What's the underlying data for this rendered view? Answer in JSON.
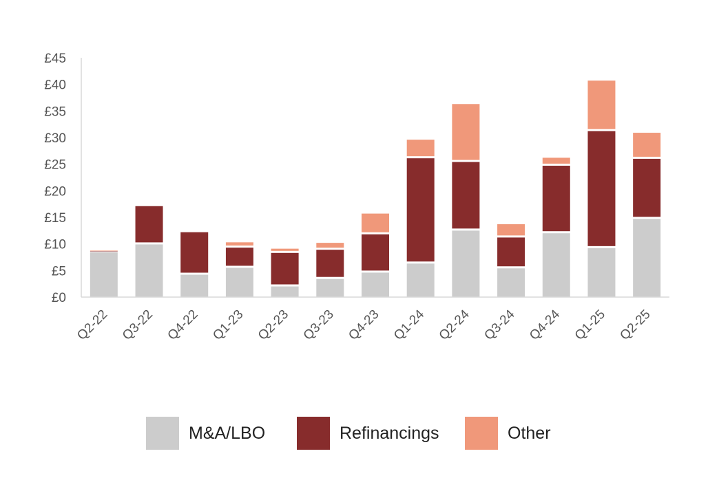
{
  "chart_data": {
    "type": "bar",
    "stacked": true,
    "categories": [
      "Q2-22",
      "Q3-22",
      "Q4-22",
      "Q1-23",
      "Q2-23",
      "Q3-23",
      "Q4-23",
      "Q1-24",
      "Q2-24",
      "Q3-24",
      "Q4-24",
      "Q1-25",
      "Q2-25"
    ],
    "series": [
      {
        "name": "M&A/LBO",
        "color": "#cccccc",
        "values": [
          8.4,
          9.9,
          4.2,
          5.5,
          2.0,
          3.4,
          4.6,
          6.3,
          12.5,
          5.4,
          12.0,
          9.2,
          14.7
        ]
      },
      {
        "name": "Refinancings",
        "color": "#872c2c",
        "values": [
          0.2,
          7.2,
          8.0,
          3.8,
          6.3,
          5.5,
          7.2,
          19.8,
          12.9,
          5.8,
          12.7,
          22.0,
          11.3
        ]
      },
      {
        "name": "Other",
        "color": "#f0987a",
        "values": [
          0.2,
          0.0,
          0.0,
          1.0,
          0.8,
          1.3,
          3.9,
          3.5,
          10.9,
          2.5,
          1.5,
          9.5,
          4.9
        ]
      }
    ],
    "title": "",
    "xlabel": "",
    "ylabel": "",
    "ylim": [
      0,
      45
    ],
    "yticks": [
      "£0",
      "£5",
      "£10",
      "£15",
      "£20",
      "£25",
      "£30",
      "£35",
      "£40",
      "£45"
    ],
    "legend_position": "bottom",
    "grid": false
  }
}
